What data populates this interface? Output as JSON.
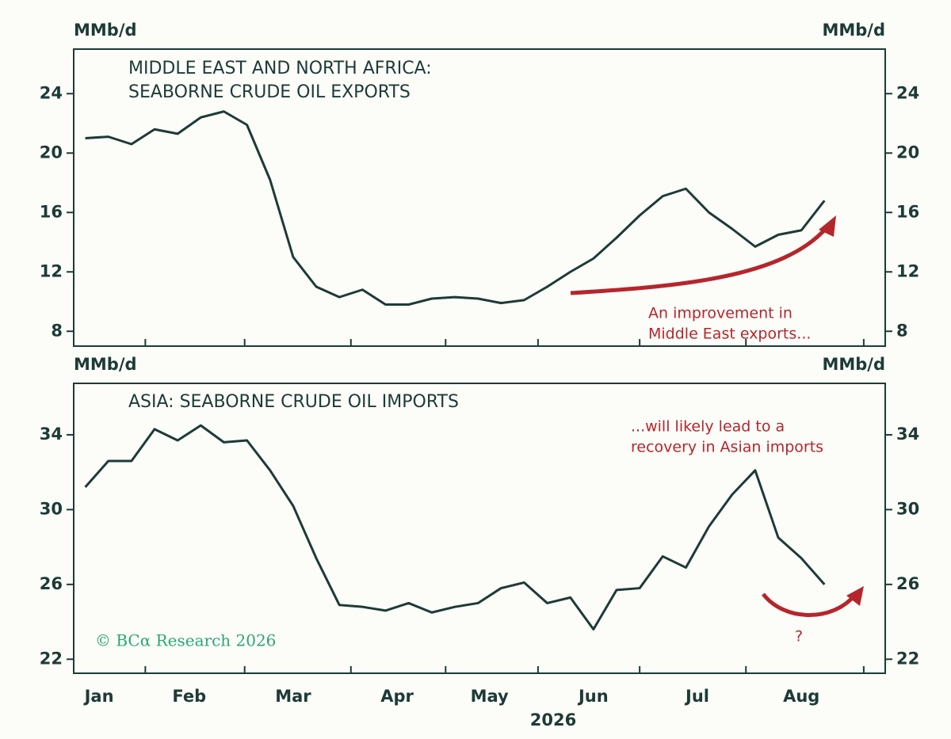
{
  "chart_data": [
    {
      "type": "line",
      "title": [
        "MIDDLE EAST AND NORTH AFRICA:",
        "SEABORNE CRUDE OIL EXPORTS"
      ],
      "ylabel": "MMb/d",
      "y2label": "MMb/d",
      "x": [
        1,
        2,
        3,
        4,
        5,
        6,
        7,
        8,
        9,
        10,
        11,
        12,
        13,
        14,
        15,
        16,
        17,
        18,
        19,
        20,
        21,
        22,
        23,
        24,
        25,
        26,
        27,
        28,
        29,
        30,
        31,
        32,
        33
      ],
      "xlim": [
        0.5,
        35.63
      ],
      "x_boundaries": [
        3.6,
        7.9,
        12.5,
        16.6,
        20.6,
        25.0,
        29.6,
        34.7
      ],
      "series": [
        {
          "name": "Exports",
          "color": "#1d3b35",
          "values": [
            21.0,
            21.1,
            20.6,
            21.6,
            21.3,
            22.4,
            22.8,
            21.9,
            18.2,
            13.0,
            11.0,
            10.3,
            10.8,
            9.8,
            9.8,
            10.2,
            10.3,
            10.2,
            9.9,
            10.1,
            11.0,
            12.0,
            12.9,
            14.3,
            15.8,
            17.1,
            17.6,
            16.0,
            14.9,
            13.7,
            14.5,
            14.8,
            16.8
          ]
        }
      ],
      "ylim": [
        7,
        27
      ],
      "yticks": [
        8,
        12,
        16,
        20,
        24
      ],
      "mirror_y": true,
      "annotation": [
        "An improvement in",
        "Middle East exports..."
      ]
    },
    {
      "type": "line",
      "title": [
        "ASIA: SEABORNE CRUDE OIL IMPORTS"
      ],
      "ylabel": "MMb/d",
      "y2label": "MMb/d",
      "xlabel": "2026",
      "x": [
        1,
        2,
        3,
        4,
        5,
        6,
        7,
        8,
        9,
        10,
        11,
        12,
        13,
        14,
        15,
        16,
        17,
        18,
        19,
        20,
        21,
        22,
        23,
        24,
        25,
        26,
        27,
        28,
        29,
        30,
        31,
        32,
        33
      ],
      "xlim": [
        0.5,
        35.63
      ],
      "x_boundaries": [
        3.6,
        7.9,
        12.5,
        16.6,
        20.6,
        25.0,
        29.6,
        34.7
      ],
      "xticks": [
        {
          "value": 1.6,
          "label": "Jan"
        },
        {
          "value": 5.5,
          "label": "Feb"
        },
        {
          "value": 10.0,
          "label": "Mar"
        },
        {
          "value": 14.5,
          "label": "Apr"
        },
        {
          "value": 18.5,
          "label": "May"
        },
        {
          "value": 23.0,
          "label": "Jun"
        },
        {
          "value": 27.5,
          "label": "Jul"
        },
        {
          "value": 32.0,
          "label": "Aug"
        }
      ],
      "series": [
        {
          "name": "Imports",
          "color": "#1d3b35",
          "values": [
            31.2,
            32.6,
            32.6,
            34.3,
            33.7,
            34.5,
            33.6,
            33.7,
            32.1,
            30.2,
            27.4,
            24.9,
            24.8,
            24.6,
            25.0,
            24.5,
            24.8,
            25.0,
            25.8,
            26.1,
            25.0,
            25.3,
            23.6,
            25.7,
            25.8,
            27.5,
            26.9,
            29.1,
            30.8,
            32.1,
            28.5,
            27.4,
            26.0
          ]
        }
      ],
      "ylim": [
        21.25,
        36.75
      ],
      "yticks": [
        22,
        26,
        30,
        34
      ],
      "mirror_y": true,
      "annotation": [
        "...will likely lead to a",
        "recovery in Asian imports",
        "?"
      ]
    }
  ],
  "source": "© BCα Research 2026"
}
